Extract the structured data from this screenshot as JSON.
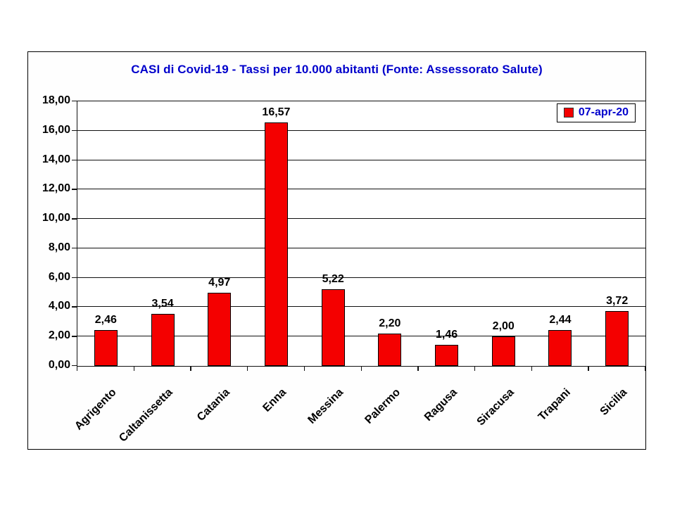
{
  "chart_data": {
    "type": "bar",
    "title": "CASI di Covid-19 - Tassi per 10.000 abitanti (Fonte: Assessorato Salute)",
    "categories": [
      "Agrigento",
      "Caltanissetta",
      "Catania",
      "Enna",
      "Messina",
      "Palermo",
      "Ragusa",
      "Siracusa",
      "Trapani",
      "Sicilia"
    ],
    "series": [
      {
        "name": "07-apr-20",
        "values": [
          2.46,
          3.54,
          4.97,
          16.57,
          5.22,
          2.2,
          1.46,
          2.0,
          2.44,
          3.72
        ]
      }
    ],
    "value_labels": [
      "2,46",
      "3,54",
      "4,97",
      "16,57",
      "5,22",
      "2,20",
      "1,46",
      "2,00",
      "2,44",
      "3,72"
    ],
    "xlabel": "",
    "ylabel": "",
    "ylim": [
      0,
      18
    ],
    "ytick_step": 2,
    "ytick_labels": [
      "0,00",
      "2,00",
      "4,00",
      "6,00",
      "8,00",
      "10,00",
      "12,00",
      "14,00",
      "16,00",
      "18,00"
    ],
    "grid": true,
    "legend_position": "top-right",
    "legend_label": "07-apr-20",
    "colors": {
      "bar_fill": "#f40000",
      "bar_border": "#000000",
      "title_text": "#0000cc",
      "legend_text": "#0000cc",
      "axis_text": "#000000",
      "gridline": "#111111",
      "plot_background": "#ffffff",
      "chart_background": "#fefefe"
    }
  }
}
